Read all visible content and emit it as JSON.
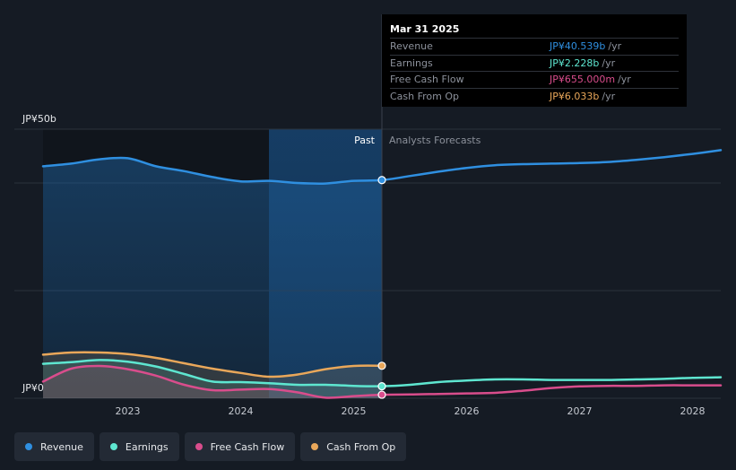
{
  "chart_data": {
    "type": "line",
    "y_top_label": "JP¥50b",
    "y_bottom_label": "JP¥0",
    "ylim": [
      0,
      50
    ],
    "xlim": [
      2022.25,
      2028.25
    ],
    "x_ticks": [
      {
        "value": 2023,
        "label": "2023"
      },
      {
        "value": 2024,
        "label": "2024"
      },
      {
        "value": 2025,
        "label": "2025"
      },
      {
        "value": 2026,
        "label": "2026"
      },
      {
        "value": 2027,
        "label": "2027"
      },
      {
        "value": 2028,
        "label": "2028"
      }
    ],
    "divider_x": 2025.25,
    "highlight_start_x": 2024.25,
    "past_label": "Past",
    "forecast_label": "Analysts Forecasts",
    "series": [
      {
        "name": "Revenue",
        "color": "#2f8fe0",
        "points": [
          [
            2022.25,
            43.1
          ],
          [
            2022.5,
            43.6
          ],
          [
            2022.75,
            44.4
          ],
          [
            2023.0,
            44.6
          ],
          [
            2023.25,
            43.1
          ],
          [
            2023.5,
            42.2
          ],
          [
            2023.75,
            41.1
          ],
          [
            2024.0,
            40.3
          ],
          [
            2024.25,
            40.4
          ],
          [
            2024.5,
            40.0
          ],
          [
            2024.75,
            39.9
          ],
          [
            2025.0,
            40.4
          ],
          [
            2025.25,
            40.54
          ],
          [
            2025.5,
            41.3
          ],
          [
            2025.75,
            42.1
          ],
          [
            2026.0,
            42.8
          ],
          [
            2026.25,
            43.3
          ],
          [
            2026.5,
            43.5
          ],
          [
            2026.75,
            43.6
          ],
          [
            2027.0,
            43.7
          ],
          [
            2027.25,
            43.9
          ],
          [
            2027.5,
            44.3
          ],
          [
            2027.75,
            44.8
          ],
          [
            2028.0,
            45.4
          ],
          [
            2028.25,
            46.1
          ]
        ]
      },
      {
        "name": "Earnings",
        "color": "#5ee6d0",
        "points": [
          [
            2022.25,
            6.4
          ],
          [
            2022.5,
            6.7
          ],
          [
            2022.75,
            7.1
          ],
          [
            2023.0,
            6.8
          ],
          [
            2023.25,
            5.9
          ],
          [
            2023.5,
            4.5
          ],
          [
            2023.75,
            3.1
          ],
          [
            2024.0,
            3.0
          ],
          [
            2024.25,
            2.8
          ],
          [
            2024.5,
            2.5
          ],
          [
            2024.75,
            2.5
          ],
          [
            2025.0,
            2.3
          ],
          [
            2025.25,
            2.228
          ],
          [
            2025.5,
            2.5
          ],
          [
            2025.75,
            3.0
          ],
          [
            2026.0,
            3.3
          ],
          [
            2026.25,
            3.5
          ],
          [
            2026.5,
            3.5
          ],
          [
            2026.75,
            3.4
          ],
          [
            2027.0,
            3.4
          ],
          [
            2027.25,
            3.4
          ],
          [
            2027.5,
            3.5
          ],
          [
            2027.75,
            3.6
          ],
          [
            2028.0,
            3.8
          ],
          [
            2028.25,
            3.9
          ]
        ]
      },
      {
        "name": "Free Cash Flow",
        "color": "#d94d8c",
        "points": [
          [
            2022.25,
            3.1
          ],
          [
            2022.5,
            5.5
          ],
          [
            2022.75,
            6.0
          ],
          [
            2023.0,
            5.4
          ],
          [
            2023.25,
            4.2
          ],
          [
            2023.5,
            2.5
          ],
          [
            2023.75,
            1.5
          ],
          [
            2024.0,
            1.6
          ],
          [
            2024.25,
            1.7
          ],
          [
            2024.5,
            1.1
          ],
          [
            2024.75,
            0.1
          ],
          [
            2025.0,
            0.4
          ],
          [
            2025.25,
            0.655
          ],
          [
            2025.5,
            0.7
          ],
          [
            2025.75,
            0.8
          ],
          [
            2026.0,
            0.9
          ],
          [
            2026.25,
            1.0
          ],
          [
            2026.5,
            1.4
          ],
          [
            2026.75,
            1.9
          ],
          [
            2027.0,
            2.2
          ],
          [
            2027.25,
            2.3
          ],
          [
            2027.5,
            2.3
          ],
          [
            2027.75,
            2.4
          ],
          [
            2028.0,
            2.4
          ],
          [
            2028.25,
            2.4
          ]
        ]
      },
      {
        "name": "Cash From Op",
        "color": "#e9a75a",
        "points": [
          [
            2022.25,
            8.1
          ],
          [
            2022.5,
            8.5
          ],
          [
            2022.75,
            8.5
          ],
          [
            2023.0,
            8.2
          ],
          [
            2023.25,
            7.5
          ],
          [
            2023.5,
            6.5
          ],
          [
            2023.75,
            5.5
          ],
          [
            2024.0,
            4.7
          ],
          [
            2024.25,
            4.0
          ],
          [
            2024.5,
            4.4
          ],
          [
            2024.75,
            5.4
          ],
          [
            2025.0,
            6.0
          ],
          [
            2025.25,
            6.033
          ]
        ]
      }
    ]
  },
  "tooltip": {
    "date": "Mar 31 2025",
    "unit": "/yr",
    "rows": [
      {
        "label": "Revenue",
        "value": "JP¥40.539b",
        "color": "#2f8fe0"
      },
      {
        "label": "Earnings",
        "value": "JP¥2.228b",
        "color": "#5ee6d0"
      },
      {
        "label": "Free Cash Flow",
        "value": "JP¥655.000m",
        "color": "#d94d8c"
      },
      {
        "label": "Cash From Op",
        "value": "JP¥6.033b",
        "color": "#e9a75a"
      }
    ]
  },
  "legend": [
    {
      "label": "Revenue",
      "color": "#2f8fe0"
    },
    {
      "label": "Earnings",
      "color": "#5ee6d0"
    },
    {
      "label": "Free Cash Flow",
      "color": "#d94d8c"
    },
    {
      "label": "Cash From Op",
      "color": "#e9a75a"
    }
  ]
}
